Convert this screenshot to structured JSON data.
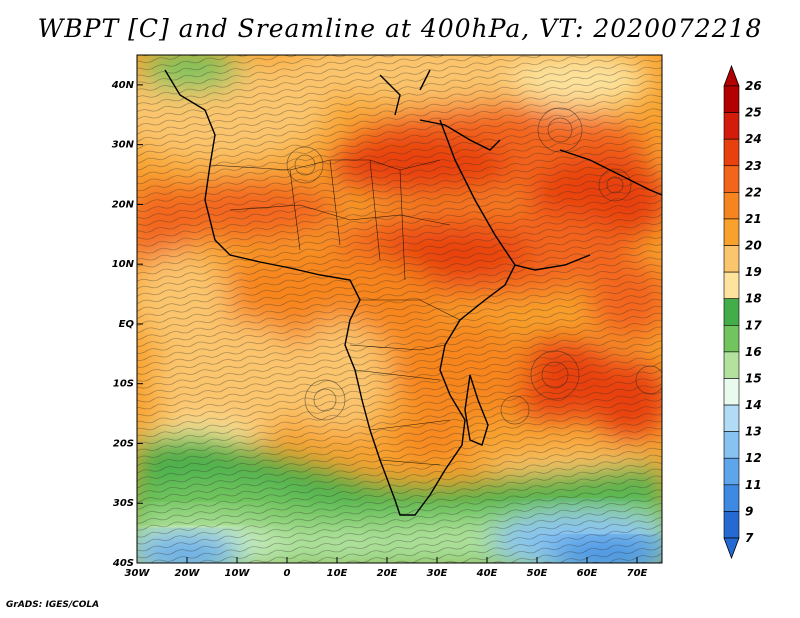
{
  "title": "WBPT [C] and Sreamline at 400hPa, VT: 2020072218",
  "credit": "GrADS: IGES/COLA",
  "map": {
    "lon_range": [
      -30,
      75
    ],
    "lat_range": [
      -40,
      45
    ],
    "lon_ticks": [
      {
        "value": -30,
        "label": "30W"
      },
      {
        "value": -20,
        "label": "20W"
      },
      {
        "value": -10,
        "label": "10W"
      },
      {
        "value": 0,
        "label": "0"
      },
      {
        "value": 10,
        "label": "10E"
      },
      {
        "value": 20,
        "label": "20E"
      },
      {
        "value": 30,
        "label": "30E"
      },
      {
        "value": 40,
        "label": "40E"
      },
      {
        "value": 50,
        "label": "50E"
      },
      {
        "value": 60,
        "label": "60E"
      },
      {
        "value": 70,
        "label": "70E"
      }
    ],
    "lat_ticks": [
      {
        "value": 40,
        "label": "40N"
      },
      {
        "value": 30,
        "label": "30N"
      },
      {
        "value": 20,
        "label": "20N"
      },
      {
        "value": 10,
        "label": "10N"
      },
      {
        "value": 0,
        "label": "EQ"
      },
      {
        "value": -10,
        "label": "10S"
      },
      {
        "value": -20,
        "label": "20S"
      },
      {
        "value": -30,
        "label": "30S"
      },
      {
        "value": -40,
        "label": "40S"
      }
    ]
  },
  "colorbar": {
    "labels": [
      "26",
      "25",
      "24",
      "23",
      "22",
      "21",
      "20",
      "19",
      "18",
      "17",
      "16",
      "15",
      "14",
      "13",
      "12",
      "11",
      "9",
      "7"
    ],
    "colors": [
      "#b30000",
      "#d41c0c",
      "#e8410e",
      "#f3651a",
      "#f7851f",
      "#f8a12d",
      "#fbc56d",
      "#fde39c",
      "#43ad4a",
      "#72c55e",
      "#b2e29e",
      "#e8fbee",
      "#b2dcf6",
      "#87c2f2",
      "#5ea6ec",
      "#3e8ae2",
      "#2569d3"
    ]
  }
}
